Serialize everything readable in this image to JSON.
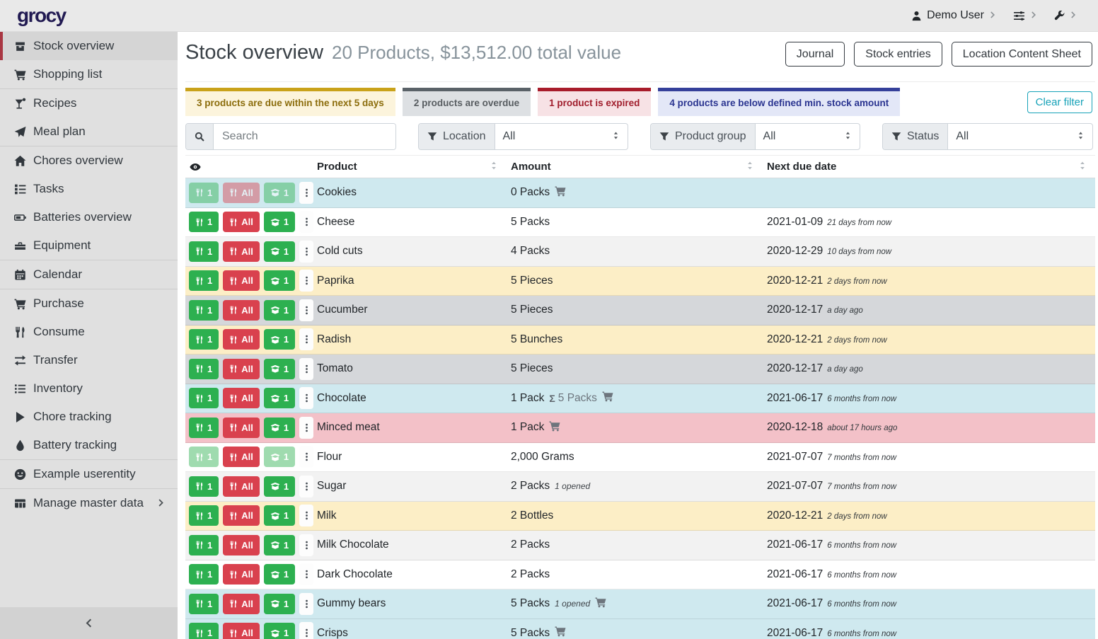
{
  "navbar": {
    "logo": "grocy",
    "user_label": "Demo User"
  },
  "sidebar": {
    "items": [
      {
        "label": "Stock overview",
        "icon": "boxes",
        "active": true
      },
      {
        "label": "Shopping list",
        "icon": "cart"
      },
      {
        "label": "Recipes",
        "icon": "cocktail",
        "divider": true
      },
      {
        "label": "Meal plan",
        "icon": "paper-plane"
      },
      {
        "label": "Chores overview",
        "icon": "home",
        "divider": true
      },
      {
        "label": "Tasks",
        "icon": "tasks"
      },
      {
        "label": "Batteries overview",
        "icon": "battery"
      },
      {
        "label": "Equipment",
        "icon": "toolbox"
      },
      {
        "label": "Calendar",
        "icon": "calendar",
        "divider": true
      },
      {
        "label": "Purchase",
        "icon": "cart",
        "divider": true
      },
      {
        "label": "Consume",
        "icon": "utensils"
      },
      {
        "label": "Transfer",
        "icon": "exchange"
      },
      {
        "label": "Inventory",
        "icon": "list"
      },
      {
        "label": "Chore tracking",
        "icon": "play"
      },
      {
        "label": "Battery tracking",
        "icon": "droplet"
      },
      {
        "label": "Example userentity",
        "icon": "smiley",
        "divider": true
      },
      {
        "label": "Manage master data",
        "icon": "table",
        "divider": true,
        "chevron": true
      }
    ]
  },
  "header": {
    "title": "Stock overview",
    "subtitle": "20 Products, $13,512.00 total value",
    "buttons": [
      "Journal",
      "Stock entries",
      "Location Content Sheet"
    ]
  },
  "banners": [
    {
      "text": "3 products are due within the next 5 days",
      "border": "#c9a21a",
      "bg": "#fcf4dc",
      "fg": "#8c6d0c"
    },
    {
      "text": "2 products are overdue",
      "border": "#5a6268",
      "bg": "#dde0e3",
      "fg": "#585d61"
    },
    {
      "text": "1 product is expired",
      "border": "#a81c2b",
      "bg": "#f7e2e5",
      "fg": "#a01d2c"
    },
    {
      "text": "4 products are below defined min. stock amount",
      "border": "#35409a",
      "bg": "#e3e7f7",
      "fg": "#2a3490"
    }
  ],
  "clear_filter_label": "Clear filter",
  "filters": {
    "search_placeholder": "Search",
    "groups": [
      {
        "label": "Location",
        "value": "All"
      },
      {
        "label": "Product group",
        "value": "All"
      },
      {
        "label": "Status",
        "value": "All"
      }
    ]
  },
  "table": {
    "columns": [
      "Product",
      "Amount",
      "Next due date"
    ],
    "row_actions": {
      "consume_one": "1",
      "consume_all": "All",
      "open_one": "1"
    },
    "rows": [
      {
        "product": "Cookies",
        "amount": "0 Packs",
        "cart": true,
        "variant": "info",
        "faded": [
          "consume_one",
          "consume_all",
          "open_one"
        ]
      },
      {
        "product": "Cheese",
        "amount": "5 Packs",
        "due": "2021-01-09",
        "due_note": "21 days from now"
      },
      {
        "product": "Cold cuts",
        "amount": "4 Packs",
        "due": "2020-12-29",
        "due_note": "10 days from now"
      },
      {
        "product": "Paprika",
        "amount": "5 Pieces",
        "due": "2020-12-21",
        "due_note": "2 days from now",
        "variant": "warning"
      },
      {
        "product": "Cucumber",
        "amount": "5 Pieces",
        "due": "2020-12-17",
        "due_note": "a day ago",
        "variant": "secondary"
      },
      {
        "product": "Radish",
        "amount": "5 Bunches",
        "due": "2020-12-21",
        "due_note": "2 days from now",
        "variant": "warning"
      },
      {
        "product": "Tomato",
        "amount": "5 Pieces",
        "due": "2020-12-17",
        "due_note": "a day ago",
        "variant": "secondary"
      },
      {
        "product": "Chocolate",
        "amount": "1 Pack",
        "amount_total": "5 Packs",
        "cart": true,
        "due": "2021-06-17",
        "due_note": "6 months from now",
        "variant": "info"
      },
      {
        "product": "Minced meat",
        "amount": "1 Pack",
        "cart": true,
        "due": "2020-12-18",
        "due_note": "about 17 hours ago",
        "variant": "danger"
      },
      {
        "product": "Flour",
        "amount": "2,000 Grams",
        "due": "2021-07-07",
        "due_note": "7 months from now",
        "faded": [
          "consume_one",
          "open_one"
        ]
      },
      {
        "product": "Sugar",
        "amount": "2 Packs",
        "amount_note": "1 opened",
        "due": "2021-07-07",
        "due_note": "7 months from now"
      },
      {
        "product": "Milk",
        "amount": "2 Bottles",
        "due": "2020-12-21",
        "due_note": "2 days from now",
        "variant": "warning"
      },
      {
        "product": "Milk Chocolate",
        "amount": "2 Packs",
        "due": "2021-06-17",
        "due_note": "6 months from now"
      },
      {
        "product": "Dark Chocolate",
        "amount": "2 Packs",
        "due": "2021-06-17",
        "due_note": "6 months from now"
      },
      {
        "product": "Gummy bears",
        "amount": "5 Packs",
        "amount_note": "1 opened",
        "cart": true,
        "due": "2021-06-17",
        "due_note": "6 months from now",
        "variant": "info"
      },
      {
        "product": "Crisps",
        "amount": "5 Packs",
        "cart": true,
        "due": "2021-06-17",
        "due_note": "6 months from now",
        "variant": "info"
      }
    ]
  },
  "colors": {
    "accent_red": "#a93743",
    "button_green": "#2db050",
    "button_red": "#d9414e",
    "row_below_min": "#cfe9ef",
    "row_due_soon": "#fceec6",
    "row_overdue": "#d5d7da",
    "row_expired": "#f3c1c8",
    "clear_filter_teal": "#17a2b8",
    "logo_navy": "#211a52"
  }
}
